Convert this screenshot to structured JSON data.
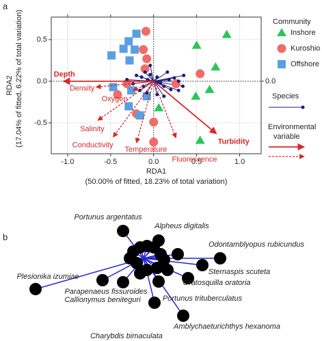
{
  "chart_data": [
    {
      "type": "biplot",
      "panel_label": "a",
      "x_label": "RDA1",
      "x_sublabel": "(50.00% of fitted, 18.23% of total variation)",
      "y_label": "RDA2",
      "y_sublabel": "(17.04% of fitted, 6.22% of total variation)",
      "xlim": [
        -1.19,
        1.25
      ],
      "ylim": [
        -0.87,
        0.77
      ],
      "xticks": [
        {
          "value": -1,
          "label": "-1.0"
        },
        {
          "value": -0.5,
          "label": "-0.5"
        },
        {
          "value": 0,
          "label": "0.0"
        },
        {
          "value": 0.5,
          "label": "0.5"
        },
        {
          "value": 1,
          "label": "1.0"
        }
      ],
      "yticks": [
        {
          "value": -0.5,
          "label": "-0.5"
        },
        {
          "value": 0,
          "label": "0.0"
        },
        {
          "value": 0.5,
          "label": "0.5"
        }
      ],
      "y2lim": [
        -0.87,
        0.77
      ],
      "y2ticks": [
        {
          "value": 0,
          "label": "0.0"
        }
      ],
      "legend_title": "Community",
      "series": [
        {
          "name": "Inshore",
          "color": "#2ec45a",
          "shape": "triangle",
          "x": [
            0.85,
            0.5,
            0.72,
            0.65,
            0.49,
            0.06,
            0.54
          ],
          "y": [
            0.56,
            0.43,
            0.17,
            -0.1,
            -0.18,
            -0.32,
            -0.71
          ]
        },
        {
          "name": "Kuroshio",
          "color": "#f26b6b",
          "shape": "circle",
          "x": [
            -0.09,
            -0.12,
            -0.08,
            -0.1,
            -0.31,
            -0.42,
            -0.2,
            0,
            0,
            0.54,
            0.26
          ],
          "y": [
            0.6,
            0.38,
            0.27,
            0.15,
            -0.03,
            -0.16,
            -0.39,
            -0.49,
            -0.73,
            0.09,
            -0.03
          ]
        },
        {
          "name": "Offshore",
          "color": "#5b9fe0",
          "shape": "square",
          "x": [
            -0.2,
            -0.29,
            -0.35,
            -0.22,
            -0.49,
            -0.28,
            -0.47,
            -0.26,
            -0.08,
            -0.29,
            -0.16
          ],
          "y": [
            0.57,
            0.48,
            0.39,
            0.38,
            0.31,
            0.25,
            -0.07,
            -0.11,
            -0.18,
            -0.3,
            -0.41
          ]
        }
      ],
      "species": {
        "name": "Species",
        "color": "#1c1c7a",
        "x": [
          -0.2,
          -0.14,
          -0.1,
          -0.07,
          -0.04,
          0.04,
          0.08,
          0.12,
          0.18,
          0.24,
          0.29,
          0.34,
          0.29,
          0.2,
          -0.12,
          -0.16,
          -0.08,
          0.04,
          -0.24,
          0.12,
          -0.04,
          0.35,
          0.16,
          -0.31
        ],
        "y": [
          0.07,
          0.05,
          0.11,
          0.02,
          0.08,
          0.05,
          -0.02,
          -0.06,
          0.02,
          0.04,
          0,
          -0.06,
          -0.11,
          -0.1,
          -0.06,
          -0.11,
          -0.14,
          -0.16,
          -0.03,
          -0.18,
          0.19,
          0.07,
          0.11,
          0.02
        ]
      },
      "env_legend": [
        "Environmental",
        "variable"
      ],
      "env_color": "#d42a2a",
      "env_vectors": {
        "labels": [
          "Depth",
          "Density",
          "Oxygen",
          "Salinity",
          "Conductivity",
          "Temperature",
          "Fluorescence",
          "Turbidity"
        ],
        "x": [
          -1.05,
          -0.67,
          -0.24,
          -0.65,
          -0.47,
          -0.2,
          0.26,
          0.73
        ],
        "y": [
          0,
          -0.07,
          -0.11,
          -0.47,
          -0.67,
          -0.74,
          -0.68,
          -0.63
        ],
        "dashed": [
          false,
          true,
          true,
          true,
          true,
          true,
          true,
          false
        ]
      }
    },
    {
      "type": "species",
      "panel_label": "b",
      "color": "#000000",
      "line_color": "#2424d6",
      "labels": [
        "Portunus argentatus",
        "Alpheus digitalis",
        "Odontamblyopus rubicundus",
        "Sternaspis scuteta",
        "Oratosquilla oratoria",
        "Portunus trituberculatus",
        "Plesionika izumiae",
        "Parapenaeus fissuroides",
        "Callionymus beniteguri",
        "Amblychaeturichthys hexanoma",
        "Charybdis bimaculata",
        null,
        null,
        null,
        null,
        null,
        null,
        null,
        null,
        null,
        null,
        null,
        null,
        null
      ],
      "x": [
        -0.15,
        0.11,
        0.56,
        0.43,
        0.325,
        0.11,
        -0.79,
        -0.3,
        -0.15,
        0.29,
        0.08,
        -0.025,
        0.025,
        0.075,
        -0.075,
        0.125,
        0.15,
        -0.05,
        -0.1,
        0.1,
        0.25,
        0.175,
        0.025,
        -0.025
      ],
      "y": [
        0.2,
        0.13,
        0,
        -0.05,
        -0.145,
        -0.17,
        -0.225,
        -0.16,
        -0.175,
        -0.42,
        -0.325,
        0.08,
        0.09,
        0.08,
        0.05,
        0.03,
        -0.01,
        -0.035,
        0,
        -0.07,
        0.03,
        -0.085,
        -0.085,
        -0.11
      ]
    }
  ]
}
